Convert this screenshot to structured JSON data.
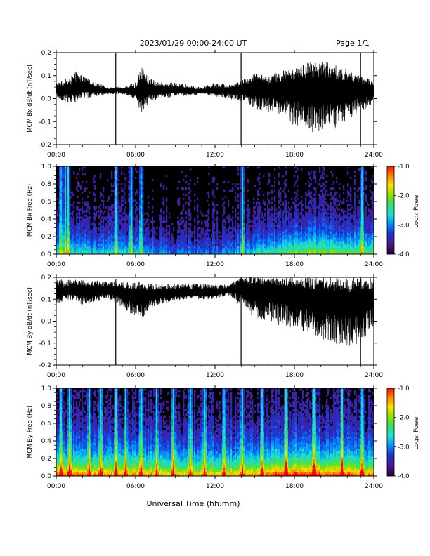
{
  "header": {
    "date_range": "2023/01/29  00:00-24:00 UT",
    "page": "Page 1/1"
  },
  "xaxis": {
    "tick_labels": [
      "00:00",
      "06:00",
      "12:00",
      "18:00",
      "24:00"
    ],
    "label": "Universal Time (hh:mm)"
  },
  "colors": {
    "trace": "#000000",
    "spectrogram_background": "#000000",
    "colormap": [
      "#2b0040",
      "#4a1a8c",
      "#2030d0",
      "#0090ff",
      "#20e0d0",
      "#30e070",
      "#90e000",
      "#ffe000",
      "#ff8000",
      "#ff0000"
    ]
  },
  "chart_data": [
    {
      "type": "line",
      "name": "bx-dbdt",
      "ylabel": "MCM Bx dB/dt (nT/sec)",
      "ylim": [
        -0.2,
        0.2
      ],
      "yticks": [
        "-0.2",
        "-0.1",
        "0.0",
        "0.1",
        "0.2"
      ],
      "xlim_hours": [
        0,
        24
      ],
      "x_hours": [
        0,
        1,
        1.5,
        2,
        3,
        4,
        4.5,
        5,
        6,
        6.5,
        7,
        8,
        9,
        10,
        11,
        12,
        13,
        14,
        15,
        16,
        17,
        18,
        19,
        20,
        21,
        22,
        23,
        24
      ],
      "center": [
        0.04,
        0.04,
        0.045,
        0.05,
        0.04,
        0.035,
        0.04,
        0.035,
        0.03,
        0.035,
        0.04,
        0.035,
        0.04,
        0.035,
        0.03,
        0.035,
        0.035,
        0.04,
        0.05,
        0.045,
        0.04,
        0.05,
        0.05,
        0.05,
        0.04,
        0.045,
        0.04,
        0.04
      ],
      "upper": [
        0.07,
        0.09,
        0.12,
        0.1,
        0.07,
        0.05,
        0.05,
        0.05,
        0.07,
        0.14,
        0.09,
        0.07,
        0.07,
        0.06,
        0.05,
        0.07,
        0.06,
        0.08,
        0.11,
        0.1,
        0.12,
        0.14,
        0.16,
        0.17,
        0.15,
        0.13,
        0.1,
        0.08
      ],
      "lower": [
        0.0,
        -0.02,
        -0.02,
        0.0,
        0.01,
        0.02,
        0.02,
        0.02,
        0.0,
        -0.08,
        -0.01,
        0.0,
        0.01,
        0.01,
        0.02,
        0.01,
        0.0,
        -0.02,
        -0.05,
        -0.06,
        -0.08,
        -0.12,
        -0.14,
        -0.16,
        -0.14,
        -0.1,
        -0.06,
        -0.02
      ],
      "spikes": [
        {
          "x_hours": 4.5,
          "min": -0.2,
          "max": 0.2
        },
        {
          "x_hours": 13.97,
          "min": -0.2,
          "max": 0.2
        },
        {
          "x_hours": 23.0,
          "min": -0.2,
          "max": 0.2
        }
      ]
    },
    {
      "type": "heatmap",
      "name": "bx-spectrogram",
      "ylabel": "MCM Bx Freq (Hz)",
      "ylim": [
        0.0,
        1.0
      ],
      "yticks": [
        "0.0",
        "0.2",
        "0.4",
        "0.6",
        "0.8",
        "1.0"
      ],
      "xlim_hours": [
        0,
        24
      ],
      "colorbar_label": "Log₁₀ Power",
      "colorbar_ticks": [
        "-1.0",
        "-2.0",
        "-3.0",
        "-4.0"
      ],
      "colorbar_range": [
        -4.0,
        -1.0
      ],
      "activity_x_hours": [
        0,
        3,
        6,
        9,
        12,
        15,
        18,
        21,
        24
      ],
      "activity": [
        0.35,
        0.3,
        0.3,
        0.2,
        0.2,
        0.3,
        0.45,
        0.45,
        0.4
      ],
      "vertical_streaks_hours": [
        0.3,
        0.6,
        0.9,
        4.5,
        5.6,
        6.4,
        13.97,
        23.0
      ]
    },
    {
      "type": "line",
      "name": "by-dbdt",
      "ylabel": "MCM By dB/dt (nT/sec)",
      "ylim": [
        -0.2,
        0.2
      ],
      "yticks": [
        "-0.2",
        "-0.1",
        "0.0",
        "0.1",
        "0.2"
      ],
      "xlim_hours": [
        0,
        24
      ],
      "x_hours": [
        0,
        1,
        2,
        3,
        4,
        4.5,
        5,
        6,
        6.5,
        7,
        8,
        9,
        10,
        11,
        12,
        13,
        14,
        15,
        16,
        17,
        18,
        19,
        20,
        21,
        22,
        23,
        24
      ],
      "center": [
        0.13,
        0.14,
        0.14,
        0.14,
        0.14,
        0.14,
        0.13,
        0.12,
        0.11,
        0.12,
        0.13,
        0.13,
        0.13,
        0.13,
        0.13,
        0.14,
        0.16,
        0.15,
        0.14,
        0.14,
        0.13,
        0.12,
        0.11,
        0.1,
        0.09,
        0.1,
        0.12
      ],
      "upper": [
        0.19,
        0.19,
        0.19,
        0.19,
        0.18,
        0.18,
        0.18,
        0.18,
        0.18,
        0.17,
        0.17,
        0.17,
        0.17,
        0.17,
        0.17,
        0.17,
        0.2,
        0.2,
        0.2,
        0.2,
        0.2,
        0.2,
        0.2,
        0.2,
        0.2,
        0.2,
        0.2
      ],
      "lower": [
        0.08,
        0.1,
        0.07,
        0.09,
        0.1,
        0.08,
        0.06,
        0.02,
        0.01,
        0.05,
        0.08,
        0.09,
        0.1,
        0.1,
        0.1,
        0.12,
        0.06,
        0.02,
        -0.01,
        -0.02,
        -0.05,
        -0.06,
        -0.08,
        -0.1,
        -0.12,
        -0.1,
        -0.02
      ],
      "spikes": [
        {
          "x_hours": 4.5,
          "min": -0.2,
          "max": 0.19
        },
        {
          "x_hours": 13.97,
          "min": -0.2,
          "max": 0.2
        },
        {
          "x_hours": 23.0,
          "min": -0.2,
          "max": 0.2
        }
      ]
    },
    {
      "type": "heatmap",
      "name": "by-spectrogram",
      "ylabel": "MCM By Freq (Hz)",
      "ylim": [
        0.0,
        1.0
      ],
      "yticks": [
        "0.0",
        "0.2",
        "0.4",
        "0.6",
        "0.8",
        "1.0"
      ],
      "xlim_hours": [
        0,
        24
      ],
      "colorbar_label": "Log₁₀ Power",
      "colorbar_ticks": [
        "-1.0",
        "-2.0",
        "-3.0",
        "-4.0"
      ],
      "colorbar_range": [
        -4.0,
        -1.0
      ],
      "activity_x_hours": [
        0,
        3,
        6,
        9,
        12,
        15,
        18,
        21,
        24
      ],
      "activity": [
        0.65,
        0.6,
        0.6,
        0.55,
        0.55,
        0.6,
        0.7,
        0.65,
        0.6
      ],
      "vertical_streaks_hours": [
        0.3,
        1.0,
        2.4,
        3.3,
        4.5,
        5.2,
        6.4,
        7.5,
        8.8,
        10.1,
        11.2,
        12.6,
        13.97,
        15.5,
        17.3,
        19.4,
        21.6,
        23.0
      ]
    }
  ]
}
